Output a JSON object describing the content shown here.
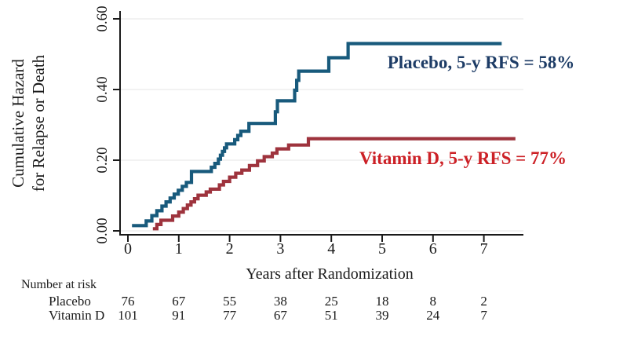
{
  "figure": {
    "background": "#ffffff",
    "axis_color": "#1a1a1a",
    "grid_color": "#ebebeb"
  },
  "chart_data": {
    "type": "line",
    "subtype": "kaplan-meier-step-cumulative-hazard",
    "title": "",
    "xlabel": "Years after Randomization",
    "ylabel": "Cumulative Hazard for Relapse or Death",
    "ylabel_line1": "Cumulative Hazard",
    "ylabel_line2": "for Relapse or Death",
    "xlim": [
      -0.15,
      7.78
    ],
    "ylim": [
      0,
      0.62
    ],
    "xticks": [
      "0",
      "1",
      "2",
      "3",
      "4",
      "5",
      "6",
      "7"
    ],
    "xtick_values": [
      0,
      1,
      2,
      3,
      4,
      5,
      6,
      7
    ],
    "yticks": [
      "0.00",
      "0.20",
      "0.40",
      "0.60"
    ],
    "ytick_values": [
      0.0,
      0.2,
      0.4,
      0.6
    ],
    "grid": "horizontal-light",
    "legend_position": "annotations-on-plot",
    "series": [
      {
        "name": "Placebo",
        "annotation": "Placebo, 5-y RFS = 58%",
        "line_color": "#185a7c",
        "annotation_color": "#1d3c66",
        "end_x": 7.35,
        "steps": [
          [
            0.08,
            0.015
          ],
          [
            0.36,
            0.028
          ],
          [
            0.47,
            0.043
          ],
          [
            0.57,
            0.057
          ],
          [
            0.67,
            0.07
          ],
          [
            0.75,
            0.082
          ],
          [
            0.83,
            0.093
          ],
          [
            0.91,
            0.104
          ],
          [
            0.99,
            0.115
          ],
          [
            1.07,
            0.126
          ],
          [
            1.15,
            0.137
          ],
          [
            1.25,
            0.168
          ],
          [
            1.64,
            0.18
          ],
          [
            1.71,
            0.191
          ],
          [
            1.78,
            0.203
          ],
          [
            1.82,
            0.214
          ],
          [
            1.86,
            0.225
          ],
          [
            1.9,
            0.235
          ],
          [
            1.94,
            0.246
          ],
          [
            2.1,
            0.258
          ],
          [
            2.16,
            0.27
          ],
          [
            2.22,
            0.282
          ],
          [
            2.38,
            0.304
          ],
          [
            2.9,
            0.337
          ],
          [
            2.94,
            0.368
          ],
          [
            3.28,
            0.398
          ],
          [
            3.32,
            0.426
          ],
          [
            3.36,
            0.452
          ],
          [
            3.95,
            0.49
          ],
          [
            4.33,
            0.53
          ]
        ]
      },
      {
        "name": "Vitamin D",
        "annotation": "Vitamin D, 5-y RFS = 77%",
        "line_color": "#9e333d",
        "annotation_color": "#cc2026",
        "end_x": 7.62,
        "steps": [
          [
            0.49,
            0.006
          ],
          [
            0.57,
            0.018
          ],
          [
            0.65,
            0.03
          ],
          [
            0.88,
            0.042
          ],
          [
            1.0,
            0.053
          ],
          [
            1.09,
            0.063
          ],
          [
            1.17,
            0.073
          ],
          [
            1.24,
            0.082
          ],
          [
            1.31,
            0.091
          ],
          [
            1.38,
            0.101
          ],
          [
            1.54,
            0.11
          ],
          [
            1.62,
            0.118
          ],
          [
            1.8,
            0.13
          ],
          [
            1.88,
            0.14
          ],
          [
            2.0,
            0.152
          ],
          [
            2.12,
            0.163
          ],
          [
            2.24,
            0.172
          ],
          [
            2.39,
            0.185
          ],
          [
            2.55,
            0.198
          ],
          [
            2.68,
            0.21
          ],
          [
            2.84,
            0.22
          ],
          [
            2.93,
            0.232
          ],
          [
            3.16,
            0.243
          ],
          [
            3.55,
            0.261
          ]
        ]
      }
    ]
  },
  "risk_table": {
    "title": "Number at risk",
    "rows": [
      {
        "label": "Placebo",
        "values": [
          "76",
          "67",
          "55",
          "38",
          "25",
          "18",
          "8",
          "2"
        ]
      },
      {
        "label": "Vitamin D",
        "values": [
          "101",
          "91",
          "77",
          "67",
          "51",
          "39",
          "24",
          "7"
        ]
      }
    ]
  }
}
